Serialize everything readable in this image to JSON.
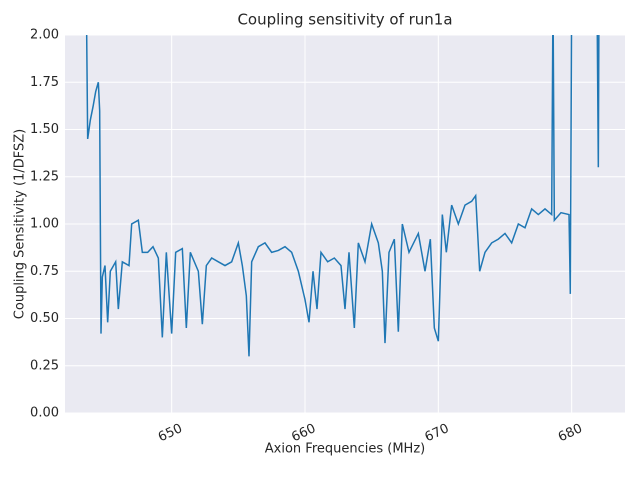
{
  "chart_data": {
    "type": "line",
    "title": "Coupling sensitivity of run1a",
    "xlabel": "Axion Frequencies (MHz)",
    "ylabel": "Coupling Sensitivity (1/DFSZ)",
    "color": "#1f77b4",
    "grid": true,
    "xlim": [
      642,
      684
    ],
    "ylim": [
      0,
      2
    ],
    "xticks": [
      650,
      660,
      670,
      680
    ],
    "yticks": [
      {
        "value": 0,
        "label": "0.00"
      },
      {
        "value": 0.25,
        "label": "0.25"
      },
      {
        "value": 0.5,
        "label": "0.50"
      },
      {
        "value": 0.75,
        "label": "0.75"
      },
      {
        "value": 1,
        "label": "1.00"
      },
      {
        "value": 1.25,
        "label": "1.25"
      },
      {
        "value": 1.5,
        "label": "1.50"
      },
      {
        "value": 1.75,
        "label": "1.75"
      },
      {
        "value": 2,
        "label": "2.00"
      }
    ],
    "x": [
      643.6,
      643.7,
      643.9,
      644.1,
      644.3,
      644.5,
      644.6,
      644.7,
      644.8,
      645.0,
      645.2,
      645.4,
      645.8,
      646.0,
      646.3,
      646.8,
      647.0,
      647.5,
      647.8,
      648.2,
      648.6,
      649.0,
      649.3,
      649.6,
      650.0,
      650.3,
      650.8,
      651.1,
      651.4,
      652.0,
      652.3,
      652.6,
      653.0,
      653.5,
      654.0,
      654.5,
      655.0,
      655.3,
      655.6,
      655.8,
      656.0,
      656.5,
      657.0,
      657.5,
      658.0,
      658.5,
      659.0,
      659.5,
      660.0,
      660.3,
      660.6,
      660.9,
      661.2,
      661.7,
      662.2,
      662.7,
      663.0,
      663.3,
      663.7,
      664.0,
      664.5,
      665.0,
      665.5,
      665.8,
      666.0,
      666.3,
      666.7,
      667.0,
      667.3,
      667.8,
      668.5,
      669.0,
      669.4,
      669.7,
      670.0,
      670.3,
      670.6,
      671.0,
      671.5,
      672.0,
      672.5,
      672.8,
      673.1,
      673.5,
      674.0,
      674.5,
      675.0,
      675.5,
      676.0,
      676.5,
      677.0,
      677.5,
      678.0,
      678.5,
      678.6,
      678.7,
      679.2,
      679.8,
      679.9,
      680.0,
      681.9,
      682.0,
      682.05
    ],
    "values": [
      2.2,
      1.45,
      1.55,
      1.62,
      1.7,
      1.75,
      1.6,
      0.42,
      0.72,
      0.78,
      0.48,
      0.75,
      0.8,
      0.55,
      0.8,
      0.78,
      1.0,
      1.02,
      0.85,
      0.85,
      0.88,
      0.82,
      0.4,
      0.85,
      0.42,
      0.85,
      0.87,
      0.45,
      0.85,
      0.75,
      0.47,
      0.78,
      0.82,
      0.8,
      0.78,
      0.8,
      0.9,
      0.78,
      0.62,
      0.3,
      0.8,
      0.88,
      0.9,
      0.85,
      0.86,
      0.88,
      0.85,
      0.75,
      0.6,
      0.48,
      0.75,
      0.55,
      0.85,
      0.8,
      0.82,
      0.78,
      0.55,
      0.85,
      0.45,
      0.9,
      0.8,
      1.0,
      0.9,
      0.75,
      0.37,
      0.85,
      0.92,
      0.43,
      1.0,
      0.85,
      0.95,
      0.75,
      0.92,
      0.45,
      0.38,
      1.05,
      0.85,
      1.1,
      1.0,
      1.1,
      1.12,
      1.15,
      0.75,
      0.85,
      0.9,
      0.92,
      0.95,
      0.9,
      1.0,
      0.98,
      1.08,
      1.05,
      1.08,
      1.05,
      2.2,
      1.02,
      1.06,
      1.05,
      0.63,
      2.2,
      2.2,
      1.3,
      2.2
    ]
  }
}
